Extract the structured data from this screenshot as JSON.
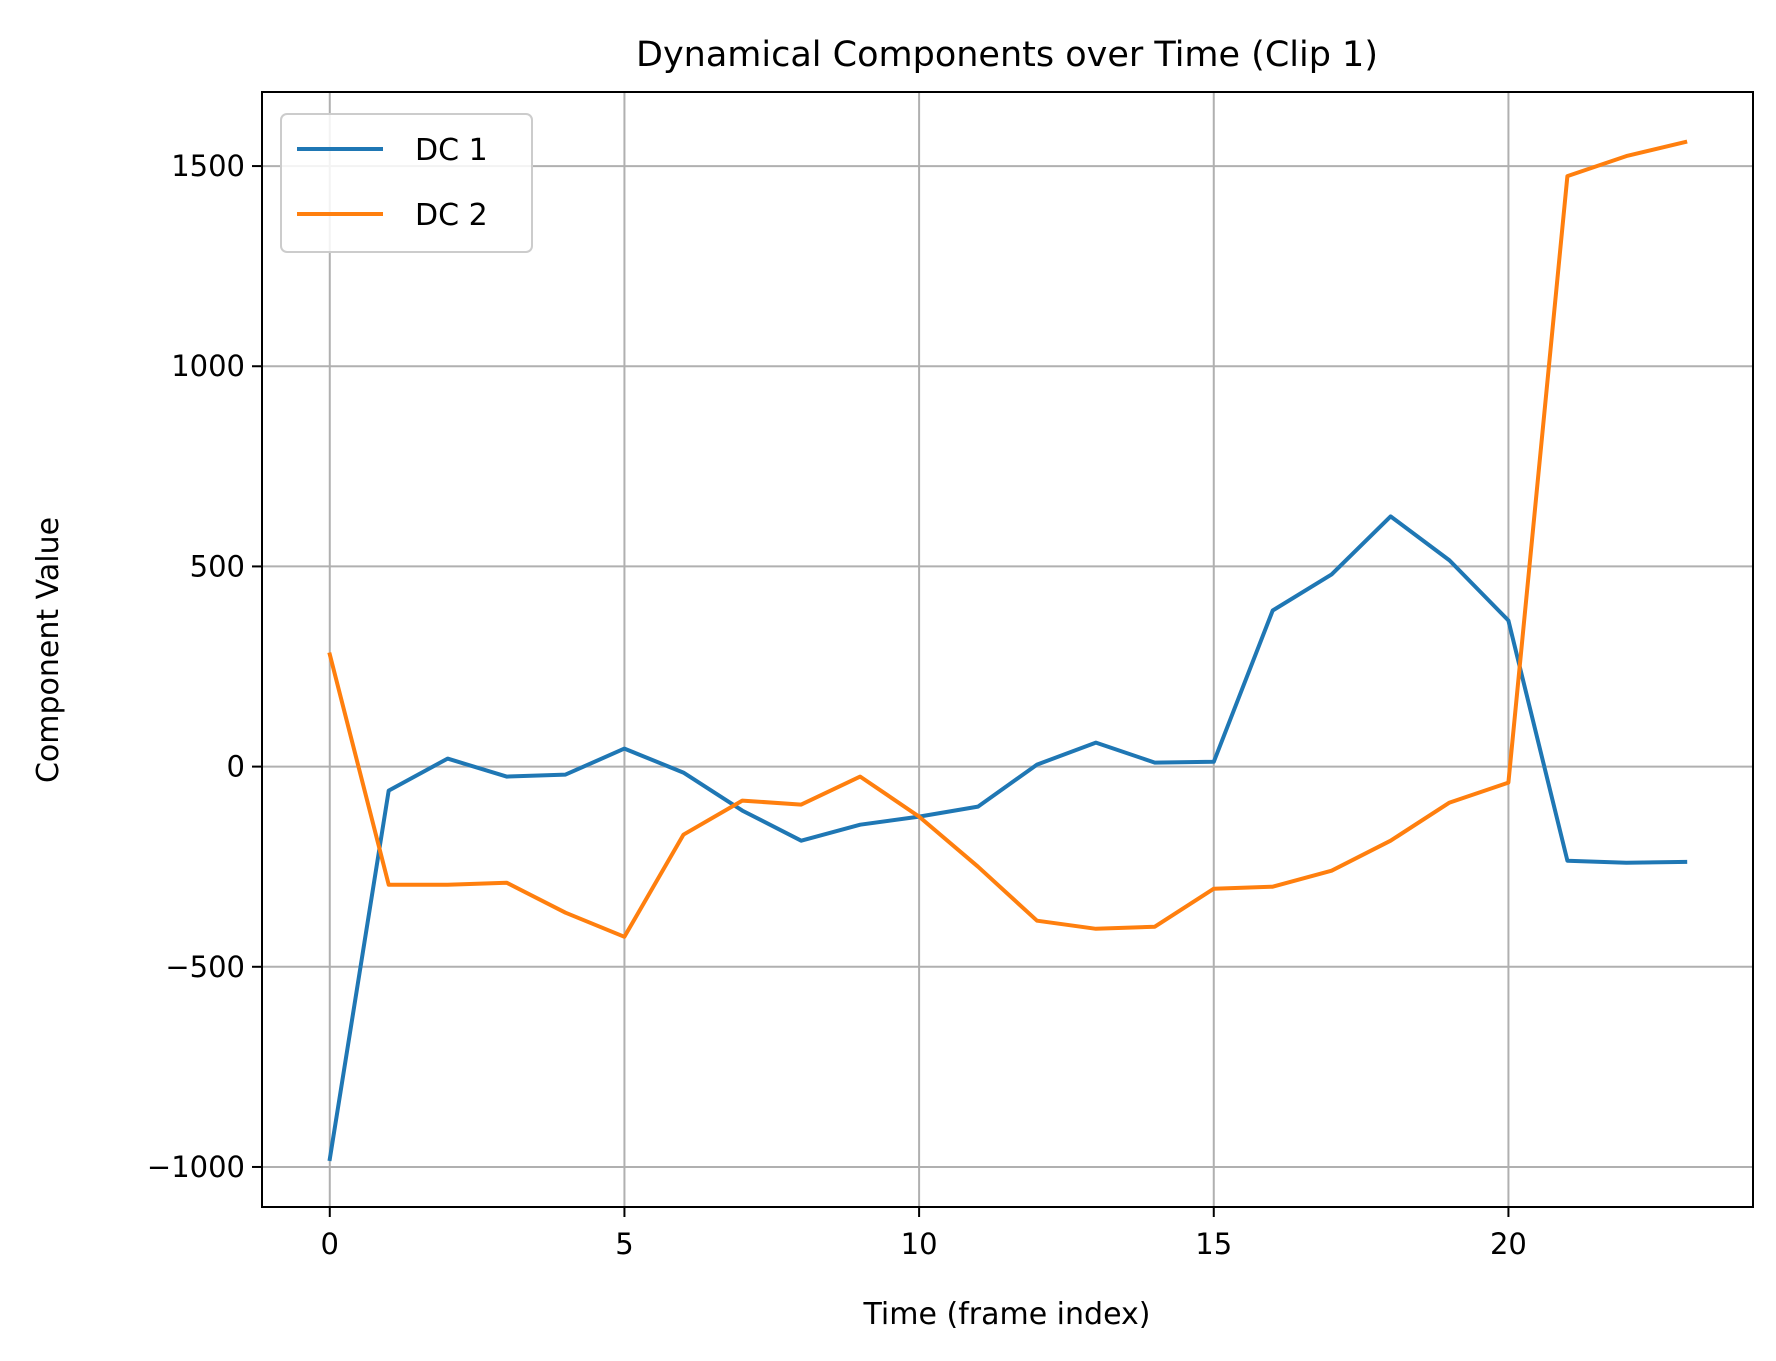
{
  "chart_data": {
    "type": "line",
    "title": "Dynamical Components over Time (Clip 1)",
    "xlabel": "Time (frame index)",
    "ylabel": "Component Value",
    "xlim": [
      -1.15,
      24.15
    ],
    "ylim": [
      -1100,
      1685
    ],
    "xticks": [
      0,
      5,
      10,
      15,
      20
    ],
    "xtick_labels": [
      "0",
      "5",
      "10",
      "15",
      "20"
    ],
    "yticks": [
      -1000,
      -500,
      0,
      500,
      1000,
      1500
    ],
    "ytick_labels": [
      "−1000",
      "−500",
      "0",
      "500",
      "1000",
      "1500"
    ],
    "grid": true,
    "legend_position": "top-left",
    "x": [
      0,
      1,
      2,
      3,
      4,
      5,
      6,
      7,
      8,
      9,
      10,
      11,
      12,
      13,
      14,
      15,
      16,
      17,
      18,
      19,
      20,
      21,
      22,
      23
    ],
    "series": [
      {
        "name": "DC 1",
        "color": "#1f77b4",
        "values": [
          -980,
          -60,
          20,
          -25,
          -20,
          45,
          -15,
          -110,
          -185,
          -145,
          -125,
          -100,
          5,
          60,
          10,
          12,
          390,
          480,
          625,
          515,
          365,
          -235,
          -240,
          -238
        ]
      },
      {
        "name": "DC 2",
        "color": "#ff7f0e",
        "values": [
          280,
          -295,
          -295,
          -290,
          -365,
          -425,
          -170,
          -85,
          -95,
          -25,
          -125,
          -250,
          -385,
          -405,
          -400,
          -305,
          -300,
          -260,
          -185,
          -90,
          -40,
          1475,
          1525,
          1560
        ]
      }
    ]
  }
}
